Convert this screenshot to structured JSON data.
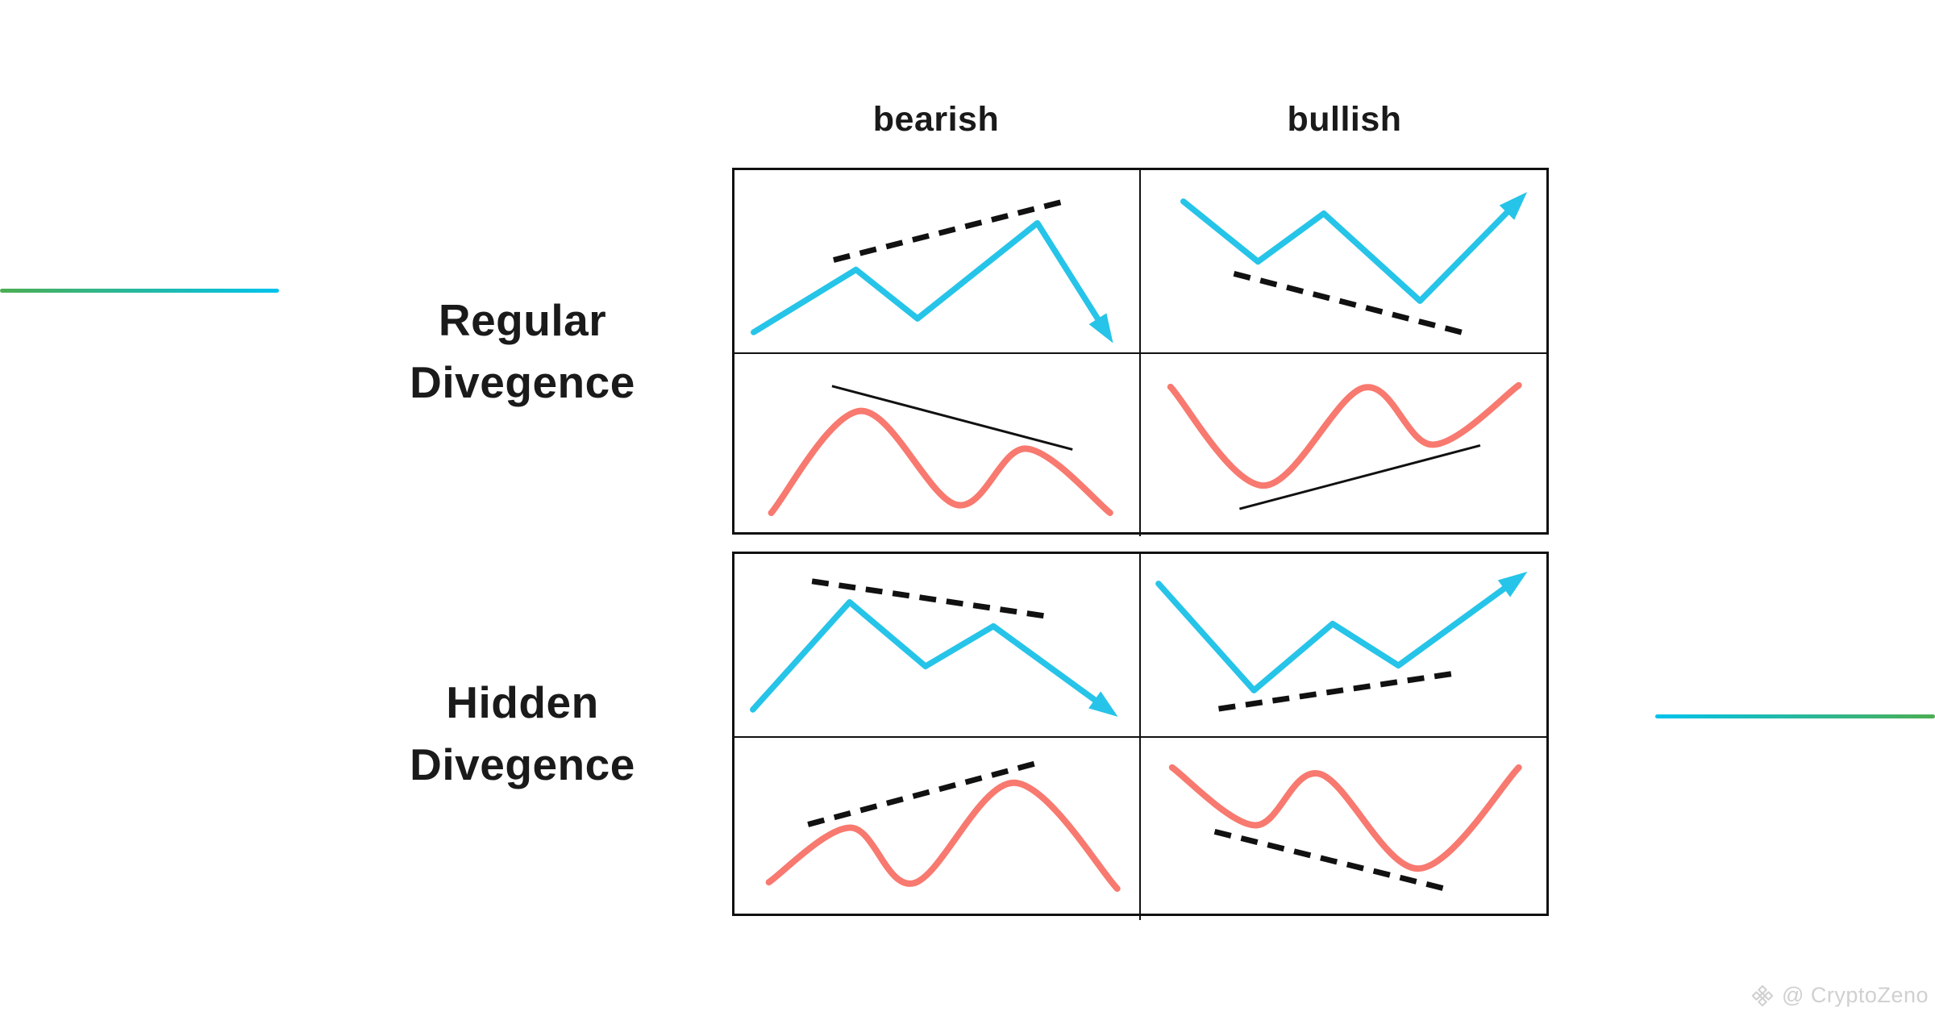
{
  "colors": {
    "price_line": "#26c4e8",
    "indicator_line": "#f8796f",
    "trend_line": "#111111",
    "border": "#111111",
    "text": "#1a1a1a",
    "watermark": "#d0d0d0"
  },
  "decor": {
    "left_gradient": [
      "#4cae52",
      "#00c3ee"
    ],
    "right_gradient": [
      "#00c3ee",
      "#4cae52"
    ]
  },
  "table": {
    "column_headers": [
      {
        "id": "bearish",
        "label": "bearish"
      },
      {
        "id": "bullish",
        "label": "bullish"
      }
    ],
    "row_labels": [
      {
        "id": "regular",
        "lines": [
          "Regular",
          "Divegence"
        ]
      },
      {
        "id": "hidden",
        "lines": [
          "Hidden",
          "Divegence"
        ]
      }
    ]
  },
  "panels": {
    "regular": {
      "bearish": {
        "price": {
          "kind": "price",
          "view": [
            506,
            227
          ],
          "points": [
            [
              24,
              202
            ],
            [
              152,
              124
            ],
            [
              229,
              185
            ],
            [
              379,
              66
            ],
            [
              462,
              197
            ]
          ],
          "arrow": true,
          "trend": {
            "from": [
              124,
              112
            ],
            "to": [
              420,
              37
            ],
            "style": "dashed"
          }
        },
        "indicator": {
          "kind": "indicator",
          "view": [
            506,
            227
          ],
          "points": [
            [
              46,
              198
            ],
            [
              158,
              71
            ],
            [
              278,
              188
            ],
            [
              365,
              118
            ],
            [
              470,
              198
            ]
          ],
          "trend": {
            "from": [
              122,
              40
            ],
            "to": [
              423,
              119
            ],
            "style": "solid"
          }
        }
      },
      "bullish": {
        "price": {
          "kind": "price",
          "view": [
            506,
            227
          ],
          "points": [
            [
              53,
              39
            ],
            [
              146,
              114
            ],
            [
              228,
              54
            ],
            [
              348,
              163
            ],
            [
              466,
              43
            ]
          ],
          "arrow": true,
          "trend": {
            "from": [
              116,
              129
            ],
            "to": [
              411,
              205
            ],
            "style": "dashed"
          }
        },
        "indicator": {
          "kind": "indicator",
          "view": [
            506,
            227
          ],
          "points": [
            [
              37,
              41
            ],
            [
              153,
              164
            ],
            [
              278,
              42
            ],
            [
              364,
              113
            ],
            [
              471,
              39
            ]
          ],
          "trend": {
            "from": [
              123,
              193
            ],
            "to": [
              423,
              114
            ],
            "style": "solid"
          }
        }
      }
    },
    "hidden": {
      "bearish": {
        "price": {
          "kind": "price",
          "view": [
            506,
            227
          ],
          "points": [
            [
              23,
              194
            ],
            [
              144,
              60
            ],
            [
              239,
              140
            ],
            [
              324,
              90
            ],
            [
              462,
              190
            ]
          ],
          "arrow": true,
          "trend": {
            "from": [
              97,
              34
            ],
            "to": [
              393,
              78
            ],
            "style": "dashed"
          }
        },
        "indicator": {
          "kind": "indicator",
          "view": [
            506,
            227
          ],
          "points": [
            [
              43,
              180
            ],
            [
              145,
              112
            ],
            [
              225,
              181
            ],
            [
              350,
              56
            ],
            [
              479,
              188
            ]
          ],
          "trend": {
            "from": [
              92,
              108
            ],
            "to": [
              384,
              30
            ],
            "style": "dashed"
          }
        }
      },
      "bullish": {
        "price": {
          "kind": "price",
          "view": [
            506,
            227
          ],
          "points": [
            [
              22,
              37
            ],
            [
              141,
              170
            ],
            [
              239,
              87
            ],
            [
              321,
              139
            ],
            [
              464,
              35
            ]
          ],
          "arrow": true,
          "trend": {
            "from": [
              97,
              193
            ],
            "to": [
              390,
              149
            ],
            "style": "dashed"
          }
        },
        "indicator": {
          "kind": "indicator",
          "view": [
            506,
            227
          ],
          "points": [
            [
              39,
              37
            ],
            [
              142,
              109
            ],
            [
              223,
              45
            ],
            [
              346,
              163
            ],
            [
              471,
              37
            ]
          ],
          "trend": {
            "from": [
              92,
              117
            ],
            "to": [
              383,
              189
            ],
            "style": "dashed"
          }
        }
      }
    }
  },
  "watermark": {
    "icon": "binance-diamond-icon",
    "text": "@ CryptoZeno"
  }
}
